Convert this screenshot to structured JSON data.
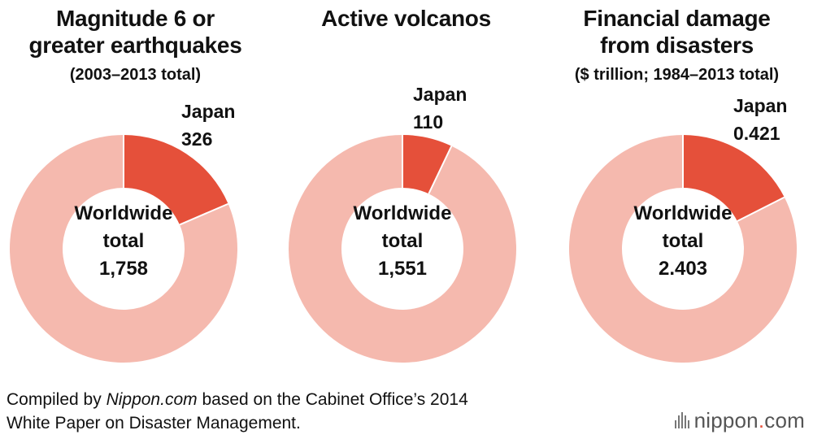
{
  "colors": {
    "japan": "#e5503a",
    "rest": "#f5b9ae",
    "text": "#111111"
  },
  "chart_data": [
    {
      "type": "pie",
      "title_lines": [
        "Magnitude 6 or",
        "greater earthquakes"
      ],
      "subtitle": "(2003–2013 total)",
      "japan_label": "Japan",
      "japan_value_text": "326",
      "japan_value": 326,
      "center_lines": [
        "Worldwide",
        "total",
        "1,758"
      ],
      "total_value": 1758
    },
    {
      "type": "pie",
      "title_lines": [
        "Active volcanos"
      ],
      "subtitle": "",
      "japan_label": "Japan",
      "japan_value_text": "110",
      "japan_value": 110,
      "center_lines": [
        "Worldwide",
        "total",
        "1,551"
      ],
      "total_value": 1551
    },
    {
      "type": "pie",
      "title_lines": [
        "Financial damage",
        "from disasters"
      ],
      "subtitle": "($ trillion; 1984–2013 total)",
      "japan_label": "Japan",
      "japan_value_text": "0.421",
      "japan_value": 0.421,
      "center_lines": [
        "Worldwide",
        "total",
        "2.403"
      ],
      "total_value": 2.403
    }
  ],
  "footer": {
    "line1_prefix": "Compiled by ",
    "line1_italic": "Nippon.com",
    "line1_suffix": " based on the Cabinet Office’s 2014",
    "line2": "White Paper on Disaster Management."
  },
  "logo": {
    "name": "nippon",
    "dot": ".",
    "tld": "com"
  }
}
